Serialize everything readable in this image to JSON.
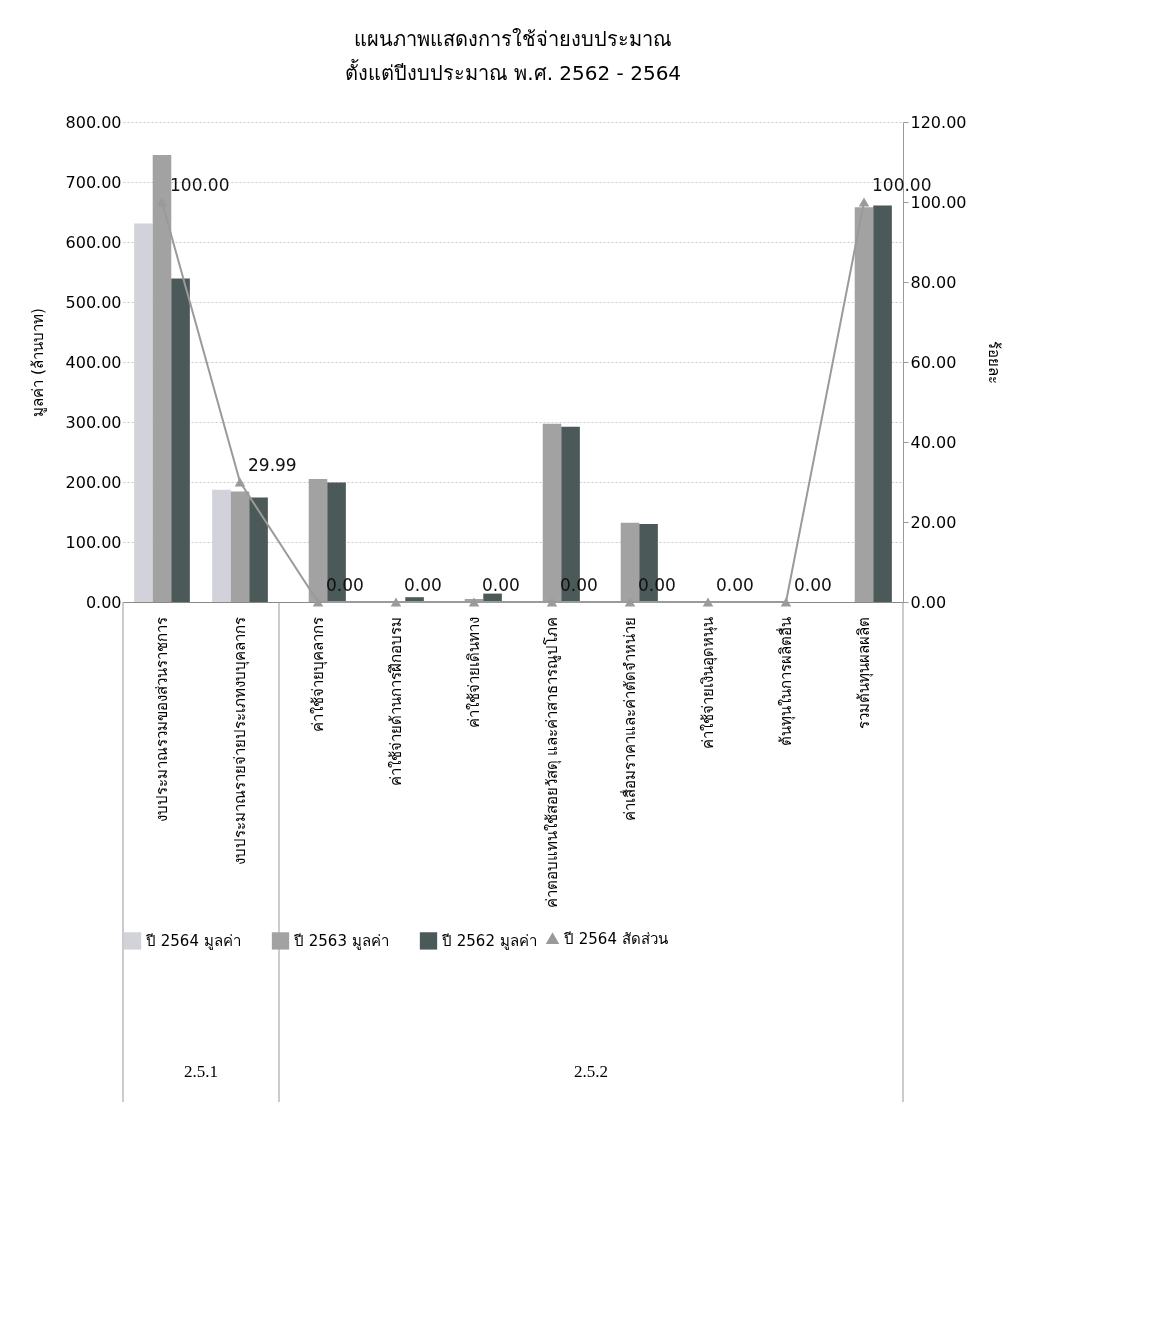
{
  "chart_data": {
    "type": "bar",
    "title": "แผนภาพแสดงการใช้จ่ายงบประมาณ",
    "subtitle": "ตั้งแต่ปีงบประมาณ พ.ศ. 2562 - 2564",
    "ylabel": "มูลค่า (ล้านบาท)",
    "y2label": "ร้อยละ",
    "categories": [
      "งบประมาณรวมของส่วนราชการ",
      "งบประมาณรายจ่ายประเภทงบบุคลากร",
      "ค่าใช้จ่ายบุคลากร",
      "ค่าใช้จ่ายด้านการฝึกอบรม",
      "ค่าใช้จ่ายเดินทาง",
      "ค่าตอบแทนใช้สอยวัสดุ  และค่าสาธารณูปโภค",
      "ค่าเสื่อมราคาและค่าตัดจำหน่าย",
      "ค่าใช้จ่ายเงินอุดหนุน",
      "ต้นทุนในการผลิตอื่น",
      "รวมต้นทุนผลผลิต"
    ],
    "series": [
      {
        "name": "ปี 2564 มูลค่า",
        "color": "#d2d2da",
        "values": [
          631,
          187,
          null,
          null,
          null,
          null,
          null,
          null,
          null,
          null
        ]
      },
      {
        "name": "ปี 2563 มูลค่า",
        "color": "#a2a2a2",
        "values": [
          745,
          184,
          205,
          0,
          5,
          297,
          132,
          0,
          0,
          658
        ]
      },
      {
        "name": "ปี 2562 มูลค่า",
        "color": "#4b5a58",
        "values": [
          539,
          174,
          199,
          8,
          14,
          292,
          130,
          0,
          0,
          661
        ]
      },
      {
        "name": "ปี 2564 สัดส่วน",
        "type": "line",
        "axis": "y2",
        "color": "#9a9a9a",
        "marker": "triangle",
        "values": [
          100,
          29.99,
          0,
          0,
          0,
          0,
          0,
          0,
          0,
          100
        ],
        "value_labels": [
          "100.00",
          "29.99",
          "0.00",
          "0.00",
          "0.00",
          "0.00",
          "0.00",
          "0.00",
          "0.00",
          "100.00"
        ]
      }
    ],
    "ylim": [
      0,
      800
    ],
    "yticks": [
      {
        "value": 0,
        "label": "0.00"
      },
      {
        "value": 100,
        "label": "100.00"
      },
      {
        "value": 200,
        "label": "200.00"
      },
      {
        "value": 300,
        "label": "300.00"
      },
      {
        "value": 400,
        "label": "400.00"
      },
      {
        "value": 500,
        "label": "500.00"
      },
      {
        "value": 600,
        "label": "600.00"
      },
      {
        "value": 700,
        "label": "700.00"
      },
      {
        "value": 800,
        "label": "800.00"
      }
    ],
    "y2lim": [
      0,
      120
    ],
    "y2ticks": [
      {
        "value": 0,
        "label": "0.00"
      },
      {
        "value": 20,
        "label": "20.00"
      },
      {
        "value": 40,
        "label": "40.00"
      },
      {
        "value": 60,
        "label": "60.00"
      },
      {
        "value": 80,
        "label": "80.00"
      },
      {
        "value": 100,
        "label": "100.00"
      },
      {
        "value": 120,
        "label": "120.00"
      }
    ],
    "grid": "y",
    "legend": "bottom",
    "annotations": [
      "2.5.1",
      "2.5.2"
    ]
  }
}
